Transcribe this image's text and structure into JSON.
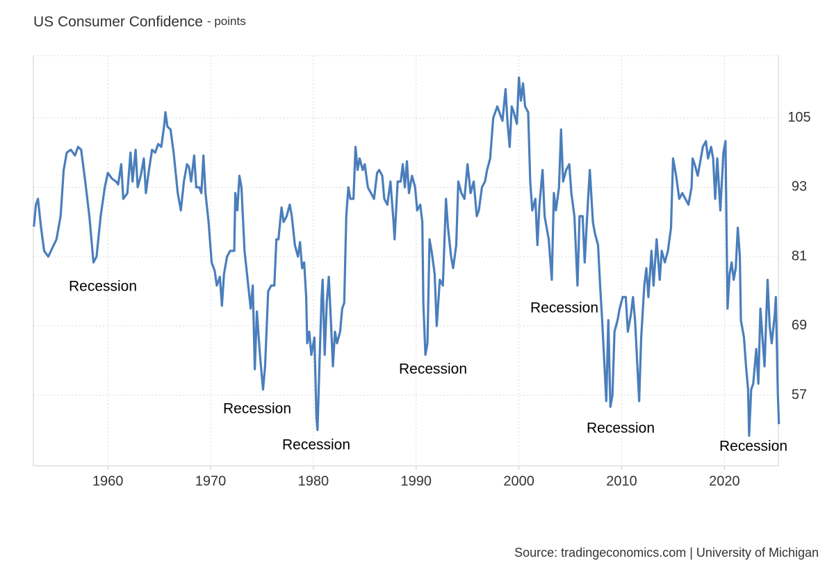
{
  "chart_data": {
    "type": "line",
    "title": "US Consumer Confidence",
    "subtitle": "- points",
    "source": "Source: tradingeconomics.com | University of Michigan",
    "color": "#4a7ebb",
    "grid": true,
    "xlim": [
      1952.75,
      2025.25
    ],
    "ylim": [
      44.8,
      115.8
    ],
    "xticks": [
      1960,
      1970,
      1980,
      1990,
      2000,
      2010,
      2020
    ],
    "yticks": [
      57,
      69,
      81,
      93,
      105
    ],
    "annotations": [
      "Recession",
      "Recession",
      "Recession",
      "Recession",
      "Recession",
      "Recession",
      "Recession"
    ],
    "x": [
      1952.8,
      1953.0,
      1953.2,
      1953.5,
      1953.8,
      1954.2,
      1954.6,
      1955.0,
      1955.4,
      1955.7,
      1956.0,
      1956.4,
      1956.8,
      1957.1,
      1957.4,
      1957.8,
      1958.2,
      1958.6,
      1958.9,
      1959.3,
      1959.7,
      1960.0,
      1960.4,
      1960.8,
      1961.0,
      1961.3,
      1961.5,
      1961.9,
      1962.2,
      1962.4,
      1962.7,
      1962.9,
      1963.2,
      1963.5,
      1963.7,
      1964.0,
      1964.3,
      1964.6,
      1964.9,
      1965.2,
      1965.5,
      1965.6,
      1965.8,
      1966.1,
      1966.4,
      1966.8,
      1967.1,
      1967.4,
      1967.7,
      1967.9,
      1968.1,
      1968.4,
      1968.6,
      1968.9,
      1969.1,
      1969.3,
      1969.5,
      1969.8,
      1970.1,
      1970.4,
      1970.6,
      1970.9,
      1971.1,
      1971.3,
      1971.6,
      1971.9,
      1972.3,
      1972.4,
      1972.6,
      1972.8,
      1973.0,
      1973.3,
      1973.6,
      1973.9,
      1974.1,
      1974.3,
      1974.5,
      1974.8,
      1975.1,
      1975.3,
      1975.6,
      1975.9,
      1976.2,
      1976.4,
      1976.6,
      1976.9,
      1977.1,
      1977.4,
      1977.7,
      1977.9,
      1978.2,
      1978.5,
      1978.7,
      1978.9,
      1979.1,
      1979.3,
      1979.4,
      1979.6,
      1979.8,
      1980.1,
      1980.3,
      1980.4,
      1980.6,
      1980.8,
      1980.9,
      1981.1,
      1981.3,
      1981.5,
      1981.7,
      1981.9,
      1982.1,
      1982.3,
      1982.6,
      1982.8,
      1983.0,
      1983.2,
      1983.4,
      1983.6,
      1983.9,
      1984.1,
      1984.3,
      1984.5,
      1984.8,
      1985.0,
      1985.3,
      1985.6,
      1985.9,
      1986.2,
      1986.4,
      1986.7,
      1986.9,
      1987.2,
      1987.5,
      1987.8,
      1987.9,
      1988.2,
      1988.5,
      1988.7,
      1988.9,
      1989.1,
      1989.3,
      1989.6,
      1989.9,
      1990.1,
      1990.4,
      1990.6,
      1990.7,
      1990.9,
      1991.1,
      1991.3,
      1991.5,
      1991.8,
      1992.0,
      1992.3,
      1992.6,
      1992.9,
      1993.1,
      1993.4,
      1993.6,
      1993.9,
      1994.1,
      1994.4,
      1994.7,
      1995.0,
      1995.3,
      1995.6,
      1995.9,
      1996.1,
      1996.4,
      1996.7,
      1996.9,
      1997.2,
      1997.5,
      1997.7,
      1997.9,
      1998.1,
      1998.4,
      1998.7,
      1998.9,
      1999.1,
      1999.3,
      1999.5,
      1999.8,
      2000.0,
      2000.2,
      2000.4,
      2000.6,
      2000.9,
      2001.1,
      2001.3,
      2001.6,
      2001.8,
      2002.0,
      2002.3,
      2002.5,
      2002.7,
      2002.9,
      2003.2,
      2003.4,
      2003.6,
      2003.9,
      2004.1,
      2004.3,
      2004.6,
      2004.9,
      2005.1,
      2005.4,
      2005.7,
      2005.9,
      2006.2,
      2006.4,
      2006.7,
      2006.9,
      2007.2,
      2007.4,
      2007.7,
      2007.9,
      2008.1,
      2008.3,
      2008.5,
      2008.7,
      2008.9,
      2009.1,
      2009.3,
      2009.6,
      2009.8,
      2010.1,
      2010.4,
      2010.6,
      2010.9,
      2011.1,
      2011.3,
      2011.5,
      2011.7,
      2011.9,
      2012.2,
      2012.4,
      2012.6,
      2012.9,
      2013.1,
      2013.4,
      2013.7,
      2013.9,
      2014.2,
      2014.5,
      2014.8,
      2015.0,
      2015.3,
      2015.6,
      2015.9,
      2016.2,
      2016.5,
      2016.8,
      2016.9,
      2017.1,
      2017.4,
      2017.6,
      2017.9,
      2018.2,
      2018.4,
      2018.7,
      2018.9,
      2019.1,
      2019.3,
      2019.6,
      2019.9,
      2020.1,
      2020.3,
      2020.5,
      2020.7,
      2020.9,
      2021.1,
      2021.3,
      2021.5,
      2021.6,
      2021.9,
      2022.1,
      2022.3,
      2022.4,
      2022.6,
      2022.8,
      2023.1,
      2023.3,
      2023.5,
      2023.7,
      2023.9,
      2024.2,
      2024.4,
      2024.6,
      2024.9,
      2025.0,
      2025.2,
      2025.3
    ],
    "values": [
      86.2,
      90,
      91,
      86,
      82,
      81,
      82.5,
      84,
      88,
      96,
      99,
      99.5,
      98.5,
      100,
      99.5,
      94,
      88,
      80,
      81,
      88,
      93,
      95.5,
      94.5,
      94,
      93.5,
      97,
      91,
      92,
      99,
      94,
      99.5,
      93,
      95,
      98,
      92,
      96,
      99.5,
      99,
      100.5,
      100,
      104,
      106,
      103.5,
      103,
      99,
      92,
      89,
      94,
      97,
      96.5,
      94,
      98.5,
      93,
      93,
      92,
      98.5,
      92,
      87,
      80,
      78.5,
      76,
      77.5,
      72.5,
      78,
      81,
      82,
      82,
      92,
      89,
      95,
      93,
      82,
      77,
      72,
      76,
      61.5,
      71.5,
      64,
      58,
      62,
      75,
      76,
      76,
      84,
      84,
      89.5,
      87,
      88,
      90,
      88,
      83,
      81,
      83.5,
      79,
      80,
      74,
      66,
      68,
      64,
      67,
      53,
      51,
      63,
      74,
      77,
      64,
      73,
      77.5,
      70,
      62,
      68,
      66,
      68,
      72,
      73,
      88,
      93,
      91,
      91,
      100,
      96,
      98,
      96,
      97,
      93,
      92,
      91,
      95.5,
      96,
      95,
      91,
      90,
      94,
      87,
      84,
      94,
      94,
      97,
      93,
      97.5,
      92,
      95,
      93,
      89,
      90,
      87,
      73,
      64,
      66,
      84,
      82,
      78,
      69,
      77,
      76,
      91,
      86,
      81,
      79,
      83,
      94,
      92,
      91,
      97,
      92,
      94,
      88,
      89,
      93,
      94,
      96,
      98,
      105,
      106,
      107,
      106,
      104.5,
      110,
      104,
      100,
      107,
      106,
      104,
      112,
      108,
      111,
      107,
      106,
      94,
      89,
      91,
      83,
      90,
      96,
      88,
      86,
      84,
      77,
      92,
      89,
      93,
      103,
      94,
      96,
      97,
      92,
      88,
      76,
      88,
      88,
      80,
      90,
      96,
      87,
      85,
      83,
      76,
      70,
      63,
      56,
      70,
      55,
      57,
      68,
      70,
      72,
      74,
      74,
      68,
      71,
      74,
      70,
      63,
      56,
      67,
      76,
      79,
      74,
      82,
      76,
      84,
      77,
      82,
      80,
      82,
      86,
      98,
      95,
      91,
      92,
      91,
      90,
      93,
      98,
      97,
      95,
      97,
      100,
      101,
      98,
      100,
      98,
      91,
      98,
      89,
      99,
      101,
      72,
      78,
      80,
      77,
      79,
      86,
      81,
      70,
      67,
      62,
      58,
      50,
      58,
      59,
      65,
      59,
      72,
      67,
      62,
      77,
      69,
      66,
      71,
      74,
      57,
      52
    ]
  }
}
